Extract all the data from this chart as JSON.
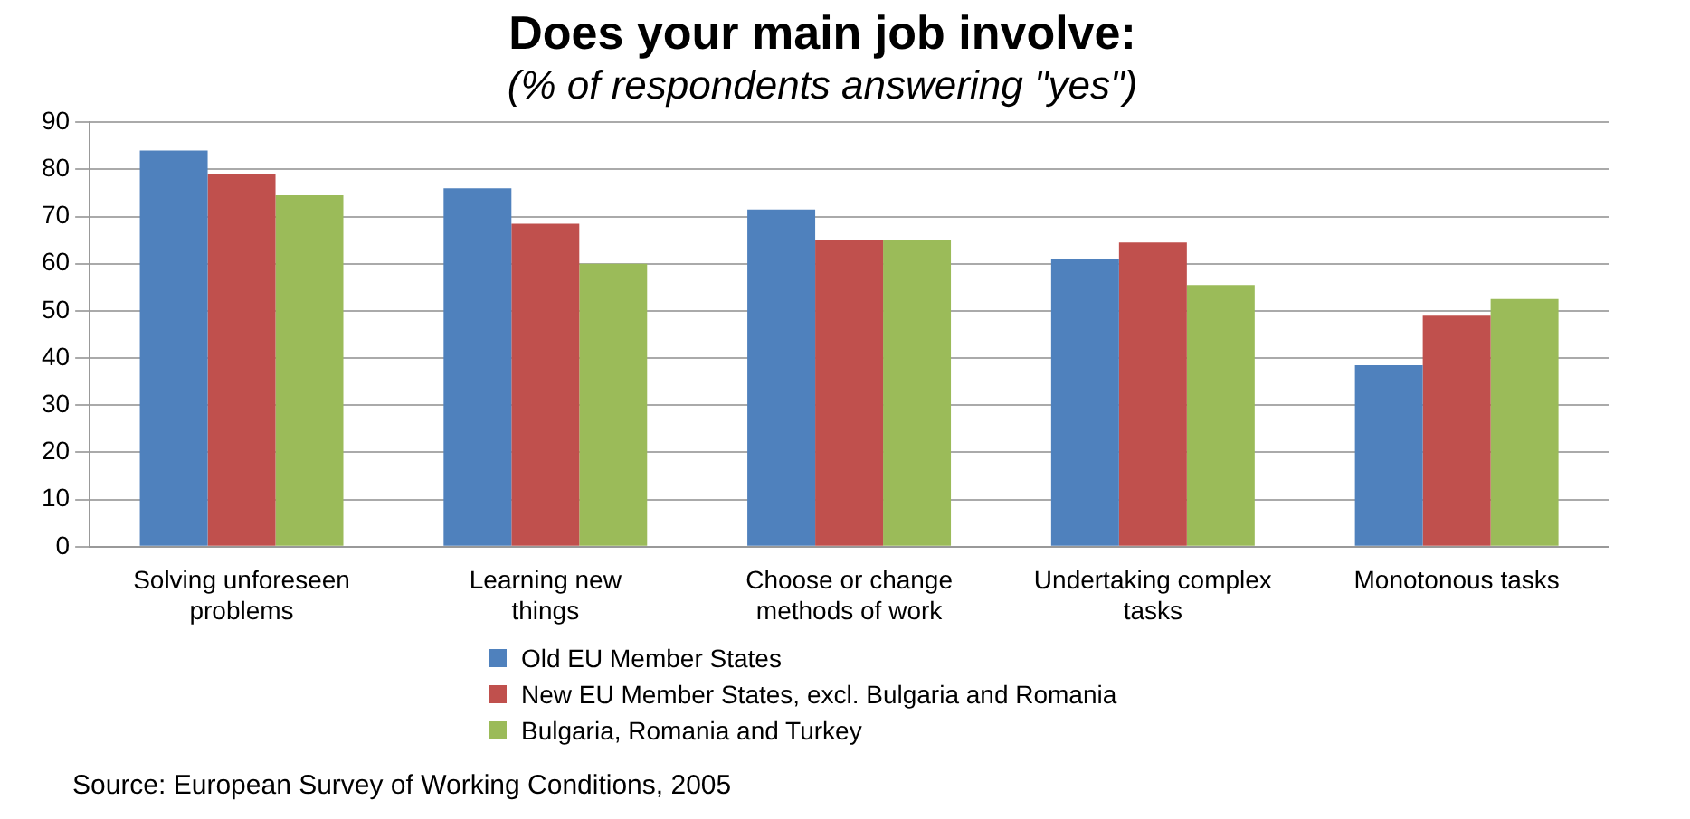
{
  "chart_data": {
    "type": "bar",
    "title": "Does your main job involve:",
    "subtitle": "(% of respondents answering \"yes\")",
    "categories": [
      "Solving unforeseen problems",
      "Learning new things",
      "Choose or change methods of work",
      "Undertaking complex tasks",
      "Monotonous tasks"
    ],
    "series": [
      {
        "name": "Old EU Member States",
        "color": "#4f81bd",
        "values": [
          84,
          76,
          71.5,
          61,
          38.5
        ]
      },
      {
        "name": "New EU Member States, excl. Bulgaria and Romania",
        "color": "#c0504d",
        "values": [
          79,
          68.5,
          65,
          64.5,
          49
        ]
      },
      {
        "name": "Bulgaria, Romania and Turkey",
        "color": "#9bbb59",
        "values": [
          74.5,
          60,
          65,
          55.5,
          52.5
        ]
      }
    ],
    "ylim": [
      0,
      90
    ],
    "yticks": [
      0,
      10,
      20,
      30,
      40,
      50,
      60,
      70,
      80,
      90
    ],
    "grid": "y",
    "legend": "bottom",
    "annotations": [
      "Source: European Survey of Working Conditions, 2005"
    ]
  }
}
